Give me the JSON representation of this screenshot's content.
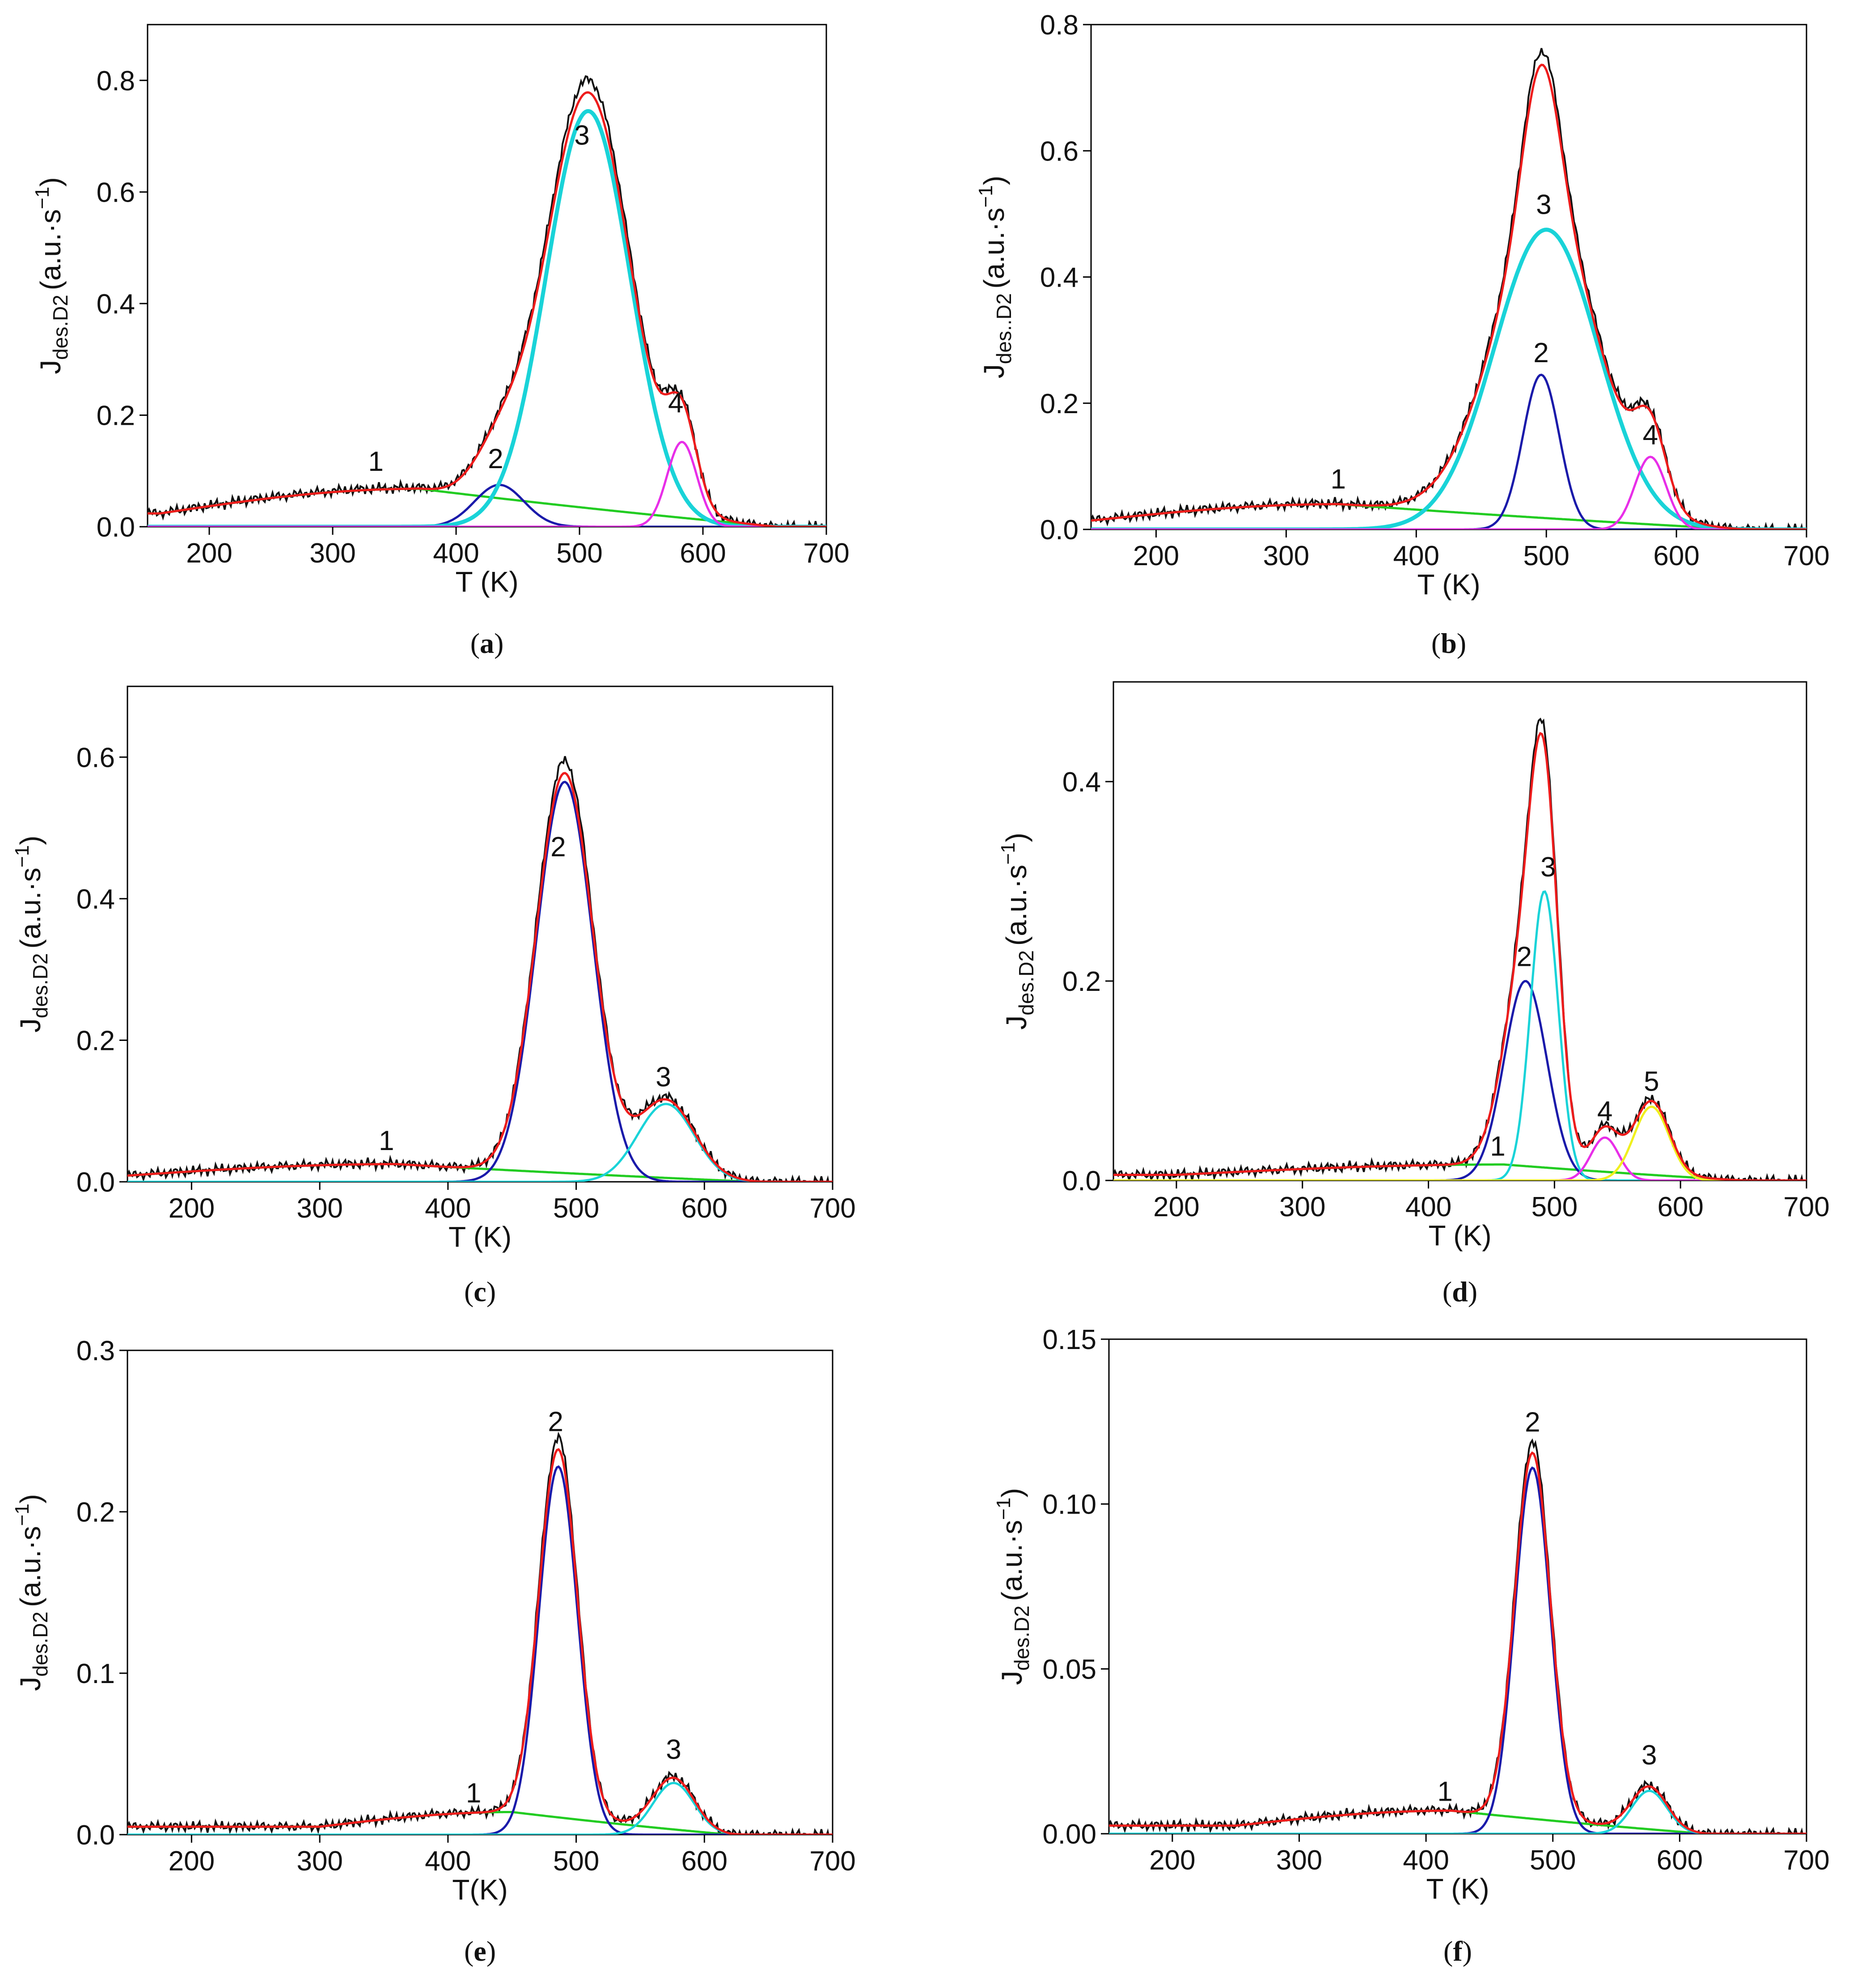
{
  "figure": {
    "panels": [
      "a",
      "b",
      "c",
      "d",
      "e",
      "f"
    ]
  },
  "chart_data": [
    {
      "id": "a",
      "type": "line",
      "caption": "a",
      "caption_open": "(",
      "caption_close": ")",
      "xlabel": "T (K)",
      "ylabel_main": "J",
      "ylabel_sub": "des.D2",
      "ylabel_unit_open": "(a.u.·s",
      "ylabel_unit_sup": "−1",
      "ylabel_unit_close": ")",
      "xlim": [
        150,
        700
      ],
      "ylim": [
        0,
        0.9
      ],
      "xticks": [
        200,
        300,
        400,
        500,
        600,
        700
      ],
      "xtick_labels": [
        "200",
        "300",
        "400",
        "500",
        "600",
        "700"
      ],
      "yticks": [
        0,
        0.2,
        0.4,
        0.6,
        0.8
      ],
      "ytick_labels": [
        "0.0",
        "0.2",
        "0.4",
        "0.6",
        "0.8"
      ],
      "series": [
        {
          "name": "background-1",
          "color": "#22cc22",
          "kind": "bg",
          "rise": 160,
          "peak": 370,
          "fall": 660,
          "amp": 0.068
        },
        {
          "name": "peak-2",
          "color": "#1a1aaa",
          "kind": "gauss",
          "center": 435,
          "sigma": 20,
          "amp": 0.075
        },
        {
          "name": "peak-3",
          "color": "#19d3d8",
          "kind": "gauss",
          "center": 507,
          "sigma": 34,
          "amp": 0.745
        },
        {
          "name": "peak-4",
          "color": "#e82ee8",
          "kind": "gauss",
          "center": 583,
          "sigma": 12,
          "amp": 0.152
        }
      ],
      "peak_labels": [
        {
          "text": "1",
          "x": 335,
          "y": 0.1
        },
        {
          "text": "2",
          "x": 432,
          "y": 0.105
        },
        {
          "text": "3",
          "x": 502,
          "y": 0.685
        },
        {
          "text": "4",
          "x": 578,
          "y": 0.205
        }
      ]
    },
    {
      "id": "b",
      "type": "line",
      "caption": "b",
      "caption_open": "(",
      "caption_close": ")",
      "xlabel": "T (K)",
      "ylabel_main": "J",
      "ylabel_sub": "des..D2",
      "ylabel_unit_open": "(a.u.·s",
      "ylabel_unit_sup": "−1",
      "ylabel_unit_close": ")",
      "xlim": [
        150,
        700
      ],
      "ylim": [
        0,
        0.8
      ],
      "xticks": [
        200,
        300,
        400,
        500,
        600,
        700
      ],
      "xtick_labels": [
        "200",
        "300",
        "400",
        "500",
        "600",
        "700"
      ],
      "yticks": [
        0,
        0.2,
        0.4,
        0.6,
        0.8
      ],
      "ytick_labels": [
        "0.0",
        "0.2",
        "0.4",
        "0.6",
        "0.8"
      ],
      "series": [
        {
          "name": "background-1",
          "color": "#22cc22",
          "kind": "bg",
          "rise": 150,
          "peak": 340,
          "fall": 650,
          "amp": 0.04
        },
        {
          "name": "peak-2",
          "color": "#1a1aaa",
          "kind": "gauss",
          "center": 496,
          "sigma": 14,
          "amp": 0.245
        },
        {
          "name": "peak-3",
          "color": "#19d3d8",
          "kind": "gauss",
          "center": 500,
          "sigma": 40,
          "amp": 0.475
        },
        {
          "name": "peak-4",
          "color": "#e82ee8",
          "kind": "gauss",
          "center": 580,
          "sigma": 12,
          "amp": 0.115
        }
      ],
      "peak_labels": [
        {
          "text": "1",
          "x": 340,
          "y": 0.065
        },
        {
          "text": "2",
          "x": 496,
          "y": 0.265
        },
        {
          "text": "3",
          "x": 498,
          "y": 0.5
        },
        {
          "text": "4",
          "x": 580,
          "y": 0.135
        }
      ]
    },
    {
      "id": "c",
      "type": "line",
      "caption": "c",
      "caption_open": "(",
      "caption_close": ")",
      "xlabel": "T (K)",
      "ylabel_main": "J",
      "ylabel_sub": "des.D2",
      "ylabel_unit_open": "(a.u.·s",
      "ylabel_unit_sup": "−1",
      "ylabel_unit_close": ")",
      "xlim": [
        150,
        700
      ],
      "ylim": [
        0,
        0.7
      ],
      "xticks": [
        200,
        300,
        400,
        500,
        600,
        700
      ],
      "xtick_labels": [
        "200",
        "300",
        "400",
        "500",
        "600",
        "700"
      ],
      "yticks": [
        0,
        0.2,
        0.4,
        0.6
      ],
      "ytick_labels": [
        "0.0",
        "0.2",
        "0.4",
        "0.6"
      ],
      "series": [
        {
          "name": "background-1",
          "color": "#22cc22",
          "kind": "bg",
          "rise": 150,
          "peak": 360,
          "fall": 640,
          "amp": 0.025
        },
        {
          "name": "peak-2",
          "color": "#1a1aaa",
          "kind": "gauss",
          "center": 491,
          "sigma": 22,
          "amp": 0.565
        },
        {
          "name": "peak-3",
          "color": "#19d3d8",
          "kind": "gauss",
          "center": 570,
          "sigma": 22,
          "amp": 0.11
        }
      ],
      "peak_labels": [
        {
          "text": "1",
          "x": 352,
          "y": 0.045
        },
        {
          "text": "2",
          "x": 486,
          "y": 0.46
        },
        {
          "text": "3",
          "x": 568,
          "y": 0.135
        }
      ]
    },
    {
      "id": "d",
      "type": "line",
      "caption": "d",
      "caption_open": "(",
      "caption_close": ")",
      "xlabel": "T (K)",
      "ylabel_main": "J",
      "ylabel_sub": "des.D2",
      "ylabel_unit_open": "(a.u.·s",
      "ylabel_unit_sup": "−1",
      "ylabel_unit_close": ")",
      "xlim": [
        150,
        700
      ],
      "ylim": [
        0,
        0.5
      ],
      "xticks": [
        200,
        300,
        400,
        500,
        600,
        700
      ],
      "xtick_labels": [
        "200",
        "300",
        "400",
        "500",
        "600",
        "700"
      ],
      "yticks": [
        0,
        0.2,
        0.4
      ],
      "ytick_labels": [
        "0.0",
        "0.2",
        "0.4"
      ],
      "series": [
        {
          "name": "background-1",
          "color": "#22cc22",
          "kind": "bg",
          "rise": 200,
          "peak": 460,
          "fall": 650,
          "amp": 0.016
        },
        {
          "name": "peak-2",
          "color": "#1a1aaa",
          "kind": "gauss",
          "center": 477,
          "sigma": 17,
          "amp": 0.2
        },
        {
          "name": "peak-3",
          "color": "#19d3d8",
          "kind": "gauss",
          "center": 492,
          "sigma": 11,
          "amp": 0.29
        },
        {
          "name": "peak-4",
          "color": "#e82ee8",
          "kind": "gauss",
          "center": 540,
          "sigma": 11,
          "amp": 0.043
        },
        {
          "name": "peak-5",
          "color": "#f0f01e",
          "kind": "gauss",
          "center": 577,
          "sigma": 14,
          "amp": 0.074
        }
      ],
      "peak_labels": [
        {
          "text": "1",
          "x": 455,
          "y": 0.025
        },
        {
          "text": "2",
          "x": 476,
          "y": 0.215
        },
        {
          "text": "3",
          "x": 495,
          "y": 0.305
        },
        {
          "text": "4",
          "x": 540,
          "y": 0.06
        },
        {
          "text": "5",
          "x": 577,
          "y": 0.09
        }
      ]
    },
    {
      "id": "e",
      "type": "line",
      "caption": "e",
      "caption_open": "(",
      "caption_close": ")",
      "xlabel": "T(K)",
      "ylabel_main": "J",
      "ylabel_sub": "des.D2",
      "ylabel_unit_open": "(a.u.·s",
      "ylabel_unit_sup": "−1",
      "ylabel_unit_close": ")",
      "xlim": [
        150,
        700
      ],
      "ylim": [
        0,
        0.3
      ],
      "xticks": [
        200,
        300,
        400,
        500,
        600,
        700
      ],
      "xtick_labels": [
        "200",
        "300",
        "400",
        "500",
        "600",
        "700"
      ],
      "yticks": [
        0,
        0.1,
        0.2,
        0.3
      ],
      "ytick_labels": [
        "0.0",
        "0.1",
        "0.2",
        "0.3"
      ],
      "series": [
        {
          "name": "background-1",
          "color": "#22cc22",
          "kind": "bg",
          "rise": 300,
          "peak": 450,
          "fall": 620,
          "amp": 0.014
        },
        {
          "name": "peak-2",
          "color": "#1a1aaa",
          "kind": "gauss",
          "center": 486,
          "sigma": 15,
          "amp": 0.228
        },
        {
          "name": "peak-3",
          "color": "#19d3d8",
          "kind": "gauss",
          "center": 576,
          "sigma": 16,
          "amp": 0.032
        }
      ],
      "peak_labels": [
        {
          "text": "1",
          "x": 420,
          "y": 0.02
        },
        {
          "text": "2",
          "x": 484,
          "y": 0.25
        },
        {
          "text": "3",
          "x": 576,
          "y": 0.047
        }
      ]
    },
    {
      "id": "f",
      "type": "line",
      "caption": "f",
      "caption_open": "(",
      "caption_close": ")",
      "xlabel": "T (K)",
      "ylabel_main": "J",
      "ylabel_sub": "des.D2",
      "ylabel_unit_open": "(a.u.·s",
      "ylabel_unit_sup": "−1",
      "ylabel_unit_close": ")",
      "xlim": [
        150,
        700
      ],
      "ylim": [
        0,
        0.15
      ],
      "xticks": [
        200,
        300,
        400,
        500,
        600,
        700
      ],
      "xtick_labels": [
        "200",
        "300",
        "400",
        "500",
        "600",
        "700"
      ],
      "yticks": [
        0,
        0.05,
        0.1,
        0.15
      ],
      "ytick_labels": [
        "0.00",
        "0.05",
        "0.10",
        "0.15"
      ],
      "series": [
        {
          "name": "background-1",
          "color": "#22cc22",
          "kind": "bg",
          "rise": 250,
          "peak": 420,
          "fall": 620,
          "amp": 0.007
        },
        {
          "name": "peak-2",
          "color": "#1a1aaa",
          "kind": "gauss",
          "center": 484,
          "sigma": 14,
          "amp": 0.111
        },
        {
          "name": "peak-3",
          "color": "#19d3d8",
          "kind": "gauss",
          "center": 576,
          "sigma": 14,
          "amp": 0.013
        }
      ],
      "peak_labels": [
        {
          "text": "1",
          "x": 415,
          "y": 0.01
        },
        {
          "text": "2",
          "x": 484,
          "y": 0.122
        },
        {
          "text": "3",
          "x": 576,
          "y": 0.021
        }
      ]
    }
  ]
}
